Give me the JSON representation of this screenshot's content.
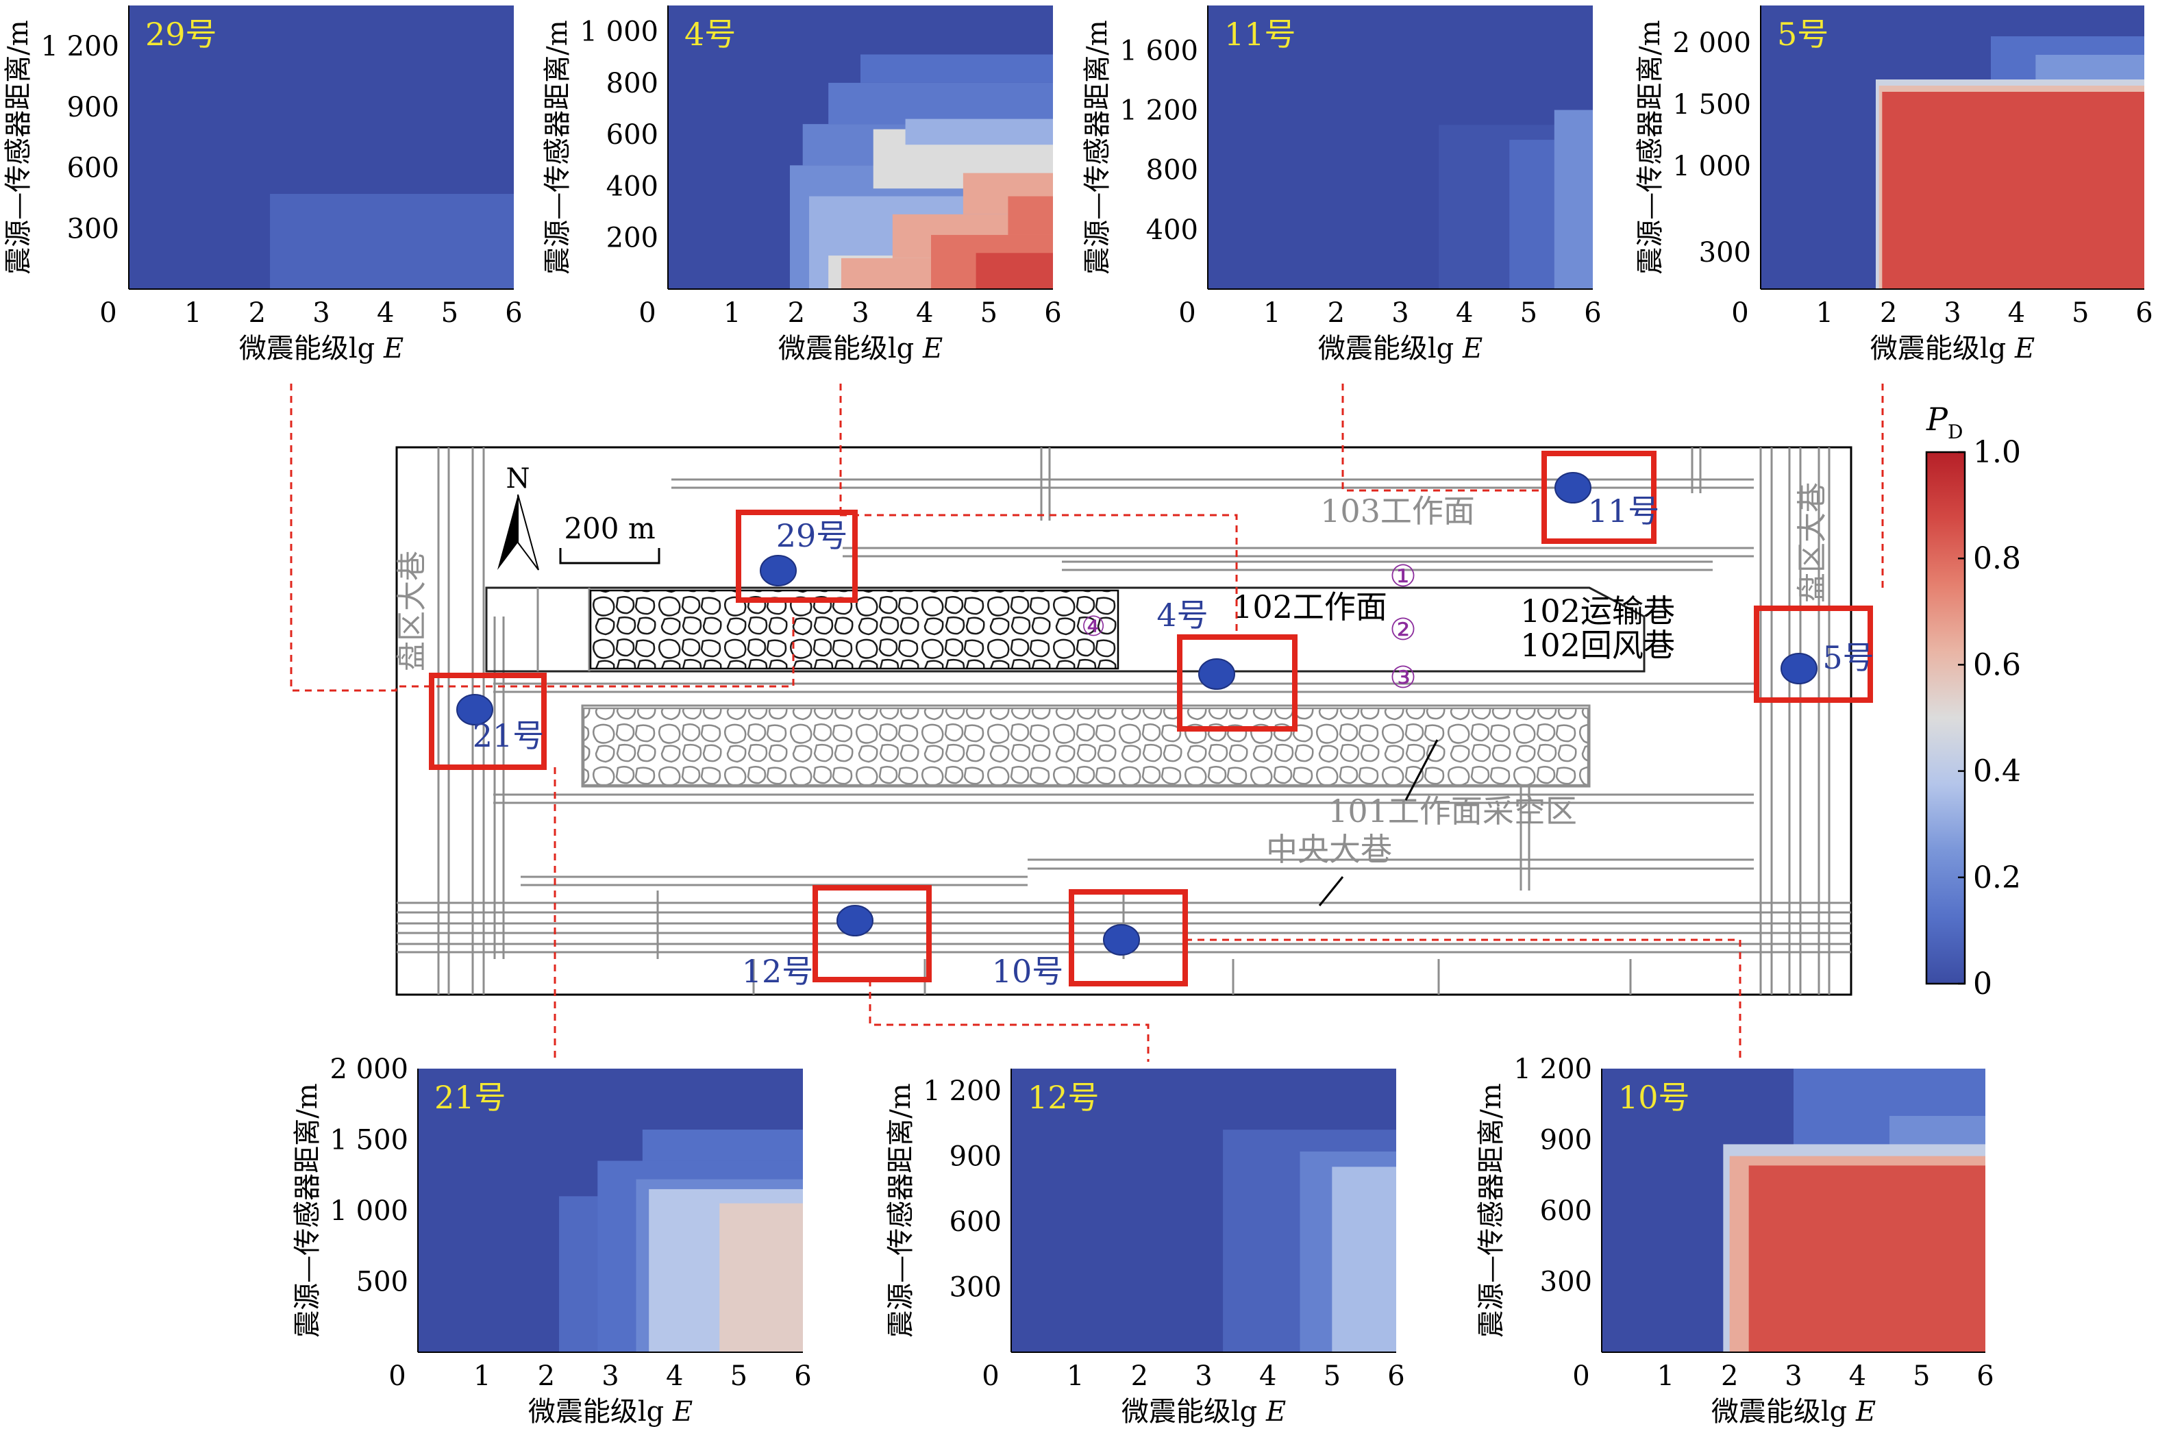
{
  "figure": {
    "axis_xlabel": "微震能级lg E",
    "axis_ylabel": "震源—传感器距离/m",
    "colorbar": {
      "label": "P",
      "label_sub": "D",
      "ticks": [
        "1.0",
        "0.8",
        "0.6",
        "0.4",
        "0.2",
        "0"
      ],
      "colors": [
        "#3b4ca3",
        "#5571c8",
        "#7a96d9",
        "#b4c5ea",
        "#dcdcdc",
        "#e9b5a5",
        "#e5806f",
        "#d34944",
        "#b62028"
      ]
    }
  },
  "chart_data": [
    {
      "id": "29",
      "type": "heatmap",
      "title": "29号",
      "x_ticks": [
        "0",
        "1",
        "2",
        "3",
        "4",
        "5",
        "6"
      ],
      "y_ticks": [
        "1 200",
        "900",
        "600",
        "300"
      ],
      "xlim": [
        0,
        6
      ],
      "ylim": [
        0,
        1400
      ],
      "regions": [
        {
          "xmin": 2.2,
          "xmax": 6,
          "ymin": 0,
          "ymax": 470,
          "p": 0.08
        }
      ]
    },
    {
      "id": "4",
      "type": "heatmap",
      "title": "4号",
      "x_ticks": [
        "0",
        "1",
        "2",
        "3",
        "4",
        "5",
        "6"
      ],
      "y_ticks": [
        "1 000",
        "800",
        "600",
        "400",
        "200"
      ],
      "xlim": [
        0,
        6
      ],
      "ylim": [
        0,
        1100
      ],
      "regions": [
        {
          "xmin": 3.0,
          "xmax": 6,
          "ymin": 800,
          "ymax": 910,
          "p": 0.12
        },
        {
          "xmin": 2.5,
          "xmax": 6,
          "ymin": 640,
          "ymax": 800,
          "p": 0.15
        },
        {
          "xmin": 2.1,
          "xmax": 6,
          "ymin": 480,
          "ymax": 640,
          "p": 0.18
        },
        {
          "xmin": 1.9,
          "xmax": 6,
          "ymin": 0,
          "ymax": 480,
          "p": 0.22
        },
        {
          "xmin": 2.2,
          "xmax": 6,
          "ymin": 0,
          "ymax": 360,
          "p": 0.32
        },
        {
          "xmin": 2.5,
          "xmax": 6,
          "ymin": 0,
          "ymax": 130,
          "p": 0.5
        },
        {
          "xmin": 3.2,
          "xmax": 6,
          "ymin": 390,
          "ymax": 620,
          "p": 0.5
        },
        {
          "xmin": 3.7,
          "xmax": 6,
          "ymin": 560,
          "ymax": 660,
          "p": 0.32
        },
        {
          "xmin": 2.7,
          "xmax": 6,
          "ymin": 0,
          "ymax": 120,
          "p": 0.66
        },
        {
          "xmin": 3.5,
          "xmax": 6,
          "ymin": 120,
          "ymax": 290,
          "p": 0.66
        },
        {
          "xmin": 4.6,
          "xmax": 6,
          "ymin": 290,
          "ymax": 450,
          "p": 0.66
        },
        {
          "xmin": 4.1,
          "xmax": 6,
          "ymin": 0,
          "ymax": 210,
          "p": 0.78
        },
        {
          "xmin": 5.3,
          "xmax": 6,
          "ymin": 210,
          "ymax": 360,
          "p": 0.78
        },
        {
          "xmin": 4.8,
          "xmax": 6,
          "ymin": 0,
          "ymax": 140,
          "p": 0.88
        }
      ]
    },
    {
      "id": "11",
      "type": "heatmap",
      "title": "11号",
      "x_ticks": [
        "0",
        "1",
        "2",
        "3",
        "4",
        "5",
        "6"
      ],
      "y_ticks": [
        "1 600",
        "1 200",
        "800",
        "400"
      ],
      "xlim": [
        0,
        6
      ],
      "ylim": [
        0,
        1900
      ],
      "regions": [
        {
          "xmin": 3.6,
          "xmax": 6,
          "ymin": 0,
          "ymax": 1100,
          "p": 0.03
        },
        {
          "xmin": 4.7,
          "xmax": 6,
          "ymin": 0,
          "ymax": 1000,
          "p": 0.1
        },
        {
          "xmin": 5.4,
          "xmax": 6,
          "ymin": 0,
          "ymax": 1200,
          "p": 0.22
        }
      ]
    },
    {
      "id": "5",
      "type": "heatmap",
      "title": "5号",
      "x_ticks": [
        "0",
        "1",
        "2",
        "3",
        "4",
        "5",
        "6"
      ],
      "y_ticks": [
        "2 000",
        "1 500",
        "1 000",
        "300"
      ],
      "xlim": [
        0,
        6
      ],
      "ylim": [
        0,
        2300
      ],
      "regions": [
        {
          "xmin": 3.6,
          "xmax": 6,
          "ymin": 1600,
          "ymax": 2050,
          "p": 0.12
        },
        {
          "xmin": 4.3,
          "xmax": 6,
          "ymin": 1600,
          "ymax": 1900,
          "p": 0.25
        },
        {
          "xmin": 1.8,
          "xmax": 6,
          "ymin": 0,
          "ymax": 1700,
          "p": 0.45
        },
        {
          "xmin": 1.85,
          "xmax": 6,
          "ymin": 0,
          "ymax": 1650,
          "p": 0.6
        },
        {
          "xmin": 1.9,
          "xmax": 6,
          "ymin": 0,
          "ymax": 1600,
          "p": 0.87
        }
      ]
    },
    {
      "id": "21",
      "type": "heatmap",
      "title": "21号",
      "x_ticks": [
        "0",
        "1",
        "2",
        "3",
        "4",
        "5",
        "6"
      ],
      "y_ticks": [
        "2 000",
        "1 500",
        "1 000",
        "500"
      ],
      "xlim": [
        0,
        6
      ],
      "ylim": [
        0,
        2000
      ],
      "regions": [
        {
          "xmin": 2.2,
          "xmax": 6,
          "ymin": 0,
          "ymax": 1100,
          "p": 0.1
        },
        {
          "xmin": 2.8,
          "xmax": 6,
          "ymin": 0,
          "ymax": 1350,
          "p": 0.12
        },
        {
          "xmin": 3.5,
          "xmax": 6,
          "ymin": 1350,
          "ymax": 1570,
          "p": 0.12
        },
        {
          "xmin": 3.4,
          "xmax": 6,
          "ymin": 0,
          "ymax": 1220,
          "p": 0.2
        },
        {
          "xmin": 3.6,
          "xmax": 6,
          "ymin": 0,
          "ymax": 1150,
          "p": 0.38
        },
        {
          "xmin": 4.7,
          "xmax": 6,
          "ymin": 0,
          "ymax": 1050,
          "p": 0.55
        }
      ]
    },
    {
      "id": "12",
      "type": "heatmap",
      "title": "12号",
      "x_ticks": [
        "0",
        "1",
        "2",
        "3",
        "4",
        "5",
        "6"
      ],
      "y_ticks": [
        "1 200",
        "900",
        "600",
        "300"
      ],
      "xlim": [
        0,
        6
      ],
      "ylim": [
        0,
        1300
      ],
      "regions": [
        {
          "xmin": 3.3,
          "xmax": 6,
          "ymin": 0,
          "ymax": 1020,
          "p": 0.08
        },
        {
          "xmin": 4.5,
          "xmax": 6,
          "ymin": 0,
          "ymax": 920,
          "p": 0.18
        },
        {
          "xmin": 5.0,
          "xmax": 6,
          "ymin": 0,
          "ymax": 850,
          "p": 0.35
        }
      ]
    },
    {
      "id": "10",
      "type": "heatmap",
      "title": "10号",
      "x_ticks": [
        "0",
        "1",
        "2",
        "3",
        "4",
        "5",
        "6"
      ],
      "y_ticks": [
        "1 200",
        "900",
        "600",
        "300"
      ],
      "xlim": [
        0,
        6
      ],
      "ylim": [
        0,
        1200
      ],
      "regions": [
        {
          "xmin": 3.0,
          "xmax": 6,
          "ymin": 850,
          "ymax": 1200,
          "p": 0.12
        },
        {
          "xmin": 4.5,
          "xmax": 6,
          "ymin": 850,
          "ymax": 1000,
          "p": 0.22
        },
        {
          "xmin": 1.9,
          "xmax": 6,
          "ymin": 0,
          "ymax": 880,
          "p": 0.42
        },
        {
          "xmin": 2.0,
          "xmax": 6,
          "ymin": 0,
          "ymax": 830,
          "p": 0.65
        },
        {
          "xmin": 2.3,
          "xmax": 6,
          "ymin": 0,
          "ymax": 790,
          "p": 0.86
        }
      ]
    }
  ],
  "map": {
    "north": "N",
    "scale": "200 m",
    "labels": {
      "face103": "103工作面",
      "face102": "102工作面",
      "transport": "102运输巷",
      "return": "102回风巷",
      "goaf101": "101工作面采空区",
      "central": "中央大巷",
      "panel_left": "盘区大巷",
      "panel_right": "盘区大巷",
      "c1": "①",
      "c2": "②",
      "c3": "③",
      "c4": "④"
    },
    "sensors": [
      {
        "id": "29",
        "label": "29号"
      },
      {
        "id": "4",
        "label": "4号"
      },
      {
        "id": "11",
        "label": "11号"
      },
      {
        "id": "5",
        "label": "5号"
      },
      {
        "id": "21",
        "label": "21号"
      },
      {
        "id": "12",
        "label": "12号"
      },
      {
        "id": "10",
        "label": "10号"
      }
    ]
  }
}
